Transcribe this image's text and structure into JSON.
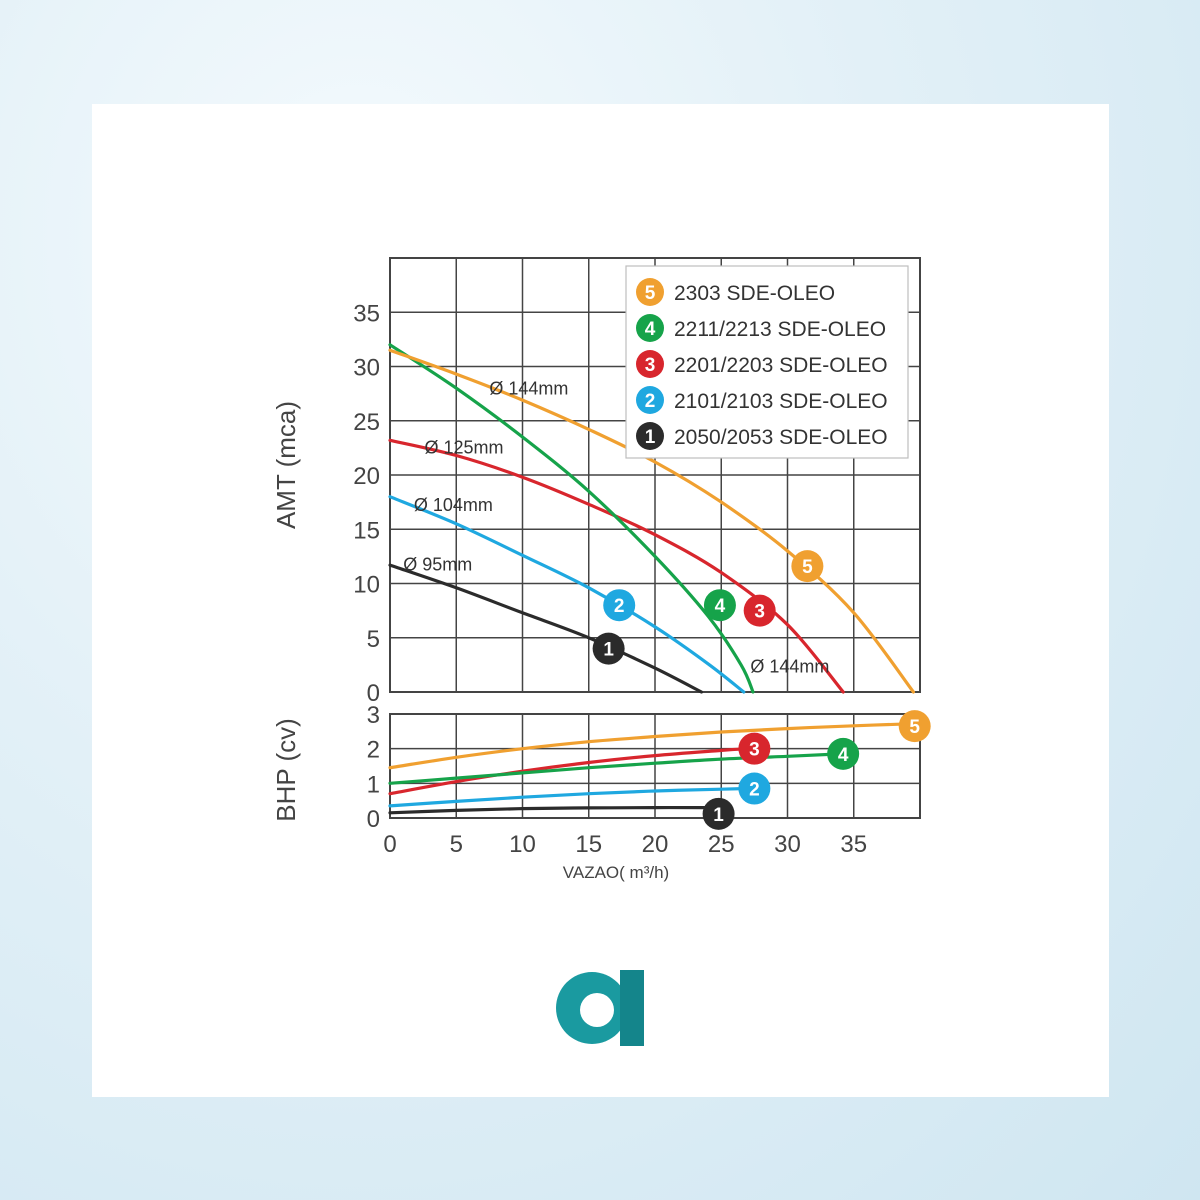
{
  "colors": {
    "s1": "#2b2b2b",
    "s2": "#1fa8e0",
    "s3": "#d8262d",
    "s4": "#16a34a",
    "s5": "#f0a030",
    "grid": "#444444",
    "logo": "#1a9aa0"
  },
  "chart_data": [
    {
      "type": "line",
      "ylabel": "AMT (mca)",
      "xlim": [
        0,
        40
      ],
      "ylim": [
        0,
        40
      ],
      "yticks": [
        0,
        5,
        10,
        15,
        20,
        25,
        30,
        35
      ],
      "legend": {
        "position": "top-right",
        "entries": [
          {
            "marker": "5",
            "label": "2303 SDE-OLEO",
            "color": "s5"
          },
          {
            "marker": "4",
            "label": "2211/2213 SDE-OLEO",
            "color": "s4"
          },
          {
            "marker": "3",
            "label": "2201/2203 SDE-OLEO",
            "color": "s3"
          },
          {
            "marker": "2",
            "label": "2101/2103 SDE-OLEO",
            "color": "s2"
          },
          {
            "marker": "1",
            "label": "2050/2053 SDE-OLEO",
            "color": "s1"
          }
        ]
      },
      "annotations": [
        {
          "text": "Ø 144mm",
          "x": 7.5,
          "y": 27.4
        },
        {
          "text": "Ø 125mm",
          "x": 2.6,
          "y": 22.0
        },
        {
          "text": "Ø 104mm",
          "x": 1.8,
          "y": 16.7
        },
        {
          "text": "Ø 95mm",
          "x": 1.0,
          "y": 11.2
        },
        {
          "text": "Ø 144mm",
          "x": 27.2,
          "y": 1.8
        }
      ],
      "series": [
        {
          "marker": "1",
          "color": "s1",
          "marker_at": [
            16.5,
            4.0
          ],
          "x": [
            0,
            5,
            10,
            15,
            20,
            23.5
          ],
          "y": [
            11.7,
            9.6,
            7.3,
            5.0,
            2.2,
            0
          ]
        },
        {
          "marker": "2",
          "color": "s2",
          "marker_at": [
            17.3,
            8.0
          ],
          "x": [
            0,
            5,
            10,
            15,
            20,
            24,
            26.7
          ],
          "y": [
            18.0,
            15.5,
            12.6,
            9.6,
            6.0,
            2.6,
            0
          ]
        },
        {
          "marker": "3",
          "color": "s3",
          "marker_at": [
            27.9,
            7.5
          ],
          "x": [
            0,
            5,
            10,
            15,
            20,
            25,
            30,
            34.2
          ],
          "y": [
            23.2,
            21.8,
            19.8,
            17.3,
            14.5,
            11.0,
            6.2,
            0
          ]
        },
        {
          "marker": "4",
          "color": "s4",
          "marker_at": [
            24.9,
            8.0
          ],
          "x": [
            0,
            5,
            10,
            15,
            20,
            24,
            26.5,
            27.4
          ],
          "y": [
            32.0,
            28.0,
            23.5,
            18.5,
            12.5,
            7.0,
            2.5,
            0
          ]
        },
        {
          "marker": "5",
          "color": "s5",
          "marker_at": [
            31.5,
            11.6
          ],
          "x": [
            0,
            5,
            10,
            15,
            20,
            25,
            30,
            35,
            39.5
          ],
          "y": [
            31.5,
            29.3,
            26.9,
            24.2,
            21.2,
            17.5,
            13.0,
            7.3,
            0
          ]
        }
      ]
    },
    {
      "type": "line",
      "xlabel": "VAZAO( m³/h)",
      "ylabel": "BHP (cv)",
      "xlim": [
        0,
        40
      ],
      "ylim": [
        0,
        3
      ],
      "xticks": [
        0,
        5,
        10,
        15,
        20,
        25,
        30,
        35
      ],
      "yticks": [
        0,
        1,
        2,
        3
      ],
      "series": [
        {
          "marker": "1",
          "color": "s1",
          "marker_at": [
            24.8,
            0.12
          ],
          "x": [
            0,
            5,
            10,
            15,
            20,
            24
          ],
          "y": [
            0.15,
            0.22,
            0.27,
            0.29,
            0.3,
            0.3
          ]
        },
        {
          "marker": "2",
          "color": "s2",
          "marker_at": [
            27.5,
            0.85
          ],
          "x": [
            0,
            5,
            10,
            15,
            20,
            25,
            27
          ],
          "y": [
            0.35,
            0.48,
            0.6,
            0.7,
            0.78,
            0.83,
            0.85
          ]
        },
        {
          "marker": "3",
          "color": "s3",
          "marker_at": [
            27.5,
            2.0
          ],
          "x": [
            0,
            5,
            10,
            15,
            20,
            25,
            27
          ],
          "y": [
            0.7,
            1.05,
            1.35,
            1.6,
            1.8,
            1.95,
            2.0
          ]
        },
        {
          "marker": "4",
          "color": "s4",
          "marker_at": [
            34.2,
            1.85
          ],
          "x": [
            0,
            5,
            10,
            15,
            20,
            25,
            30,
            34
          ],
          "y": [
            1.0,
            1.15,
            1.3,
            1.45,
            1.58,
            1.7,
            1.78,
            1.85
          ]
        },
        {
          "marker": "5",
          "color": "s5",
          "marker_at": [
            39.6,
            2.65
          ],
          "x": [
            0,
            5,
            10,
            15,
            20,
            25,
            30,
            35,
            39.5
          ],
          "y": [
            1.45,
            1.75,
            2.0,
            2.2,
            2.35,
            2.48,
            2.58,
            2.66,
            2.72
          ]
        }
      ]
    }
  ],
  "logo": {
    "icon": "brand-logo-icon"
  }
}
